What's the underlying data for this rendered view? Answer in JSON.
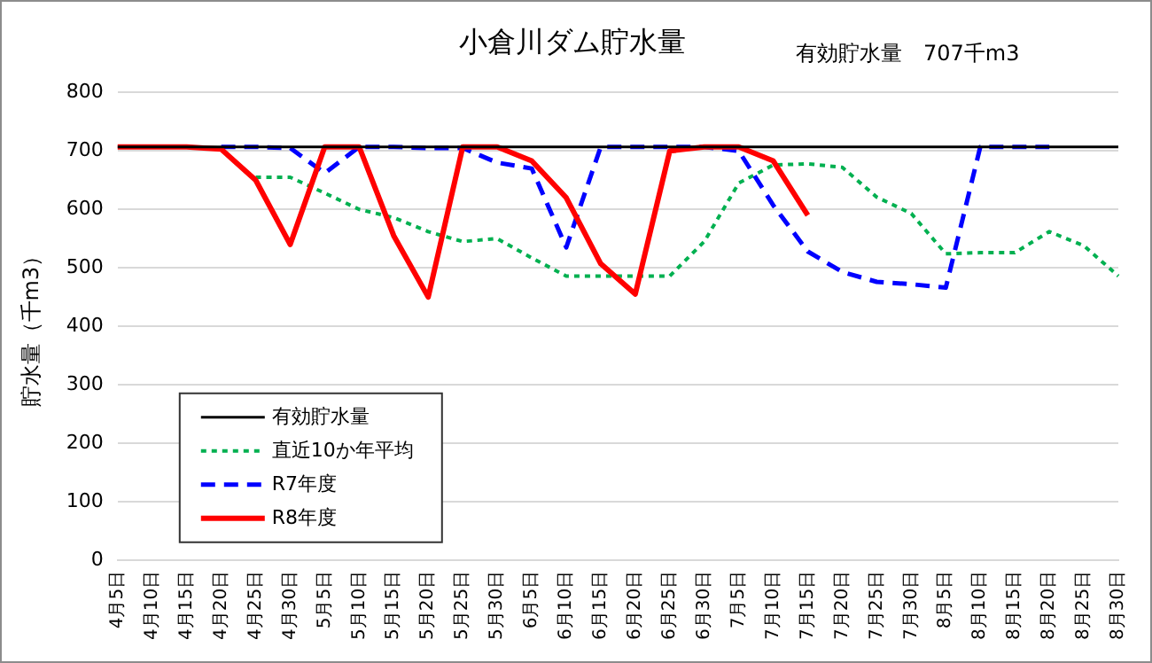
{
  "chart_data": {
    "type": "line",
    "title": "小倉川ダム貯水量",
    "ylabel": "貯水量（千m3）",
    "annotations": [
      "有効貯水量　707千m3"
    ],
    "categories": [
      "4月5日",
      "4月10日",
      "4月15日",
      "4月20日",
      "4月25日",
      "4月30日",
      "5月5日",
      "5月10日",
      "5月15日",
      "5月20日",
      "5月25日",
      "5月30日",
      "6月5日",
      "6月10日",
      "6月15日",
      "6月20日",
      "6月25日",
      "6月30日",
      "7月5日",
      "7月10日",
      "7月15日",
      "7月20日",
      "7月25日",
      "7月30日",
      "8月5日",
      "8月10日",
      "8月15日",
      "8月20日",
      "8月25日",
      "8月30日"
    ],
    "series": [
      {
        "name": "有効貯水量",
        "color": "#000000",
        "line_style": "solid",
        "values": [
          707,
          707,
          707,
          707,
          707,
          707,
          707,
          707,
          707,
          707,
          707,
          707,
          707,
          707,
          707,
          707,
          707,
          707,
          707,
          707,
          707,
          707,
          707,
          707,
          707,
          707,
          707,
          707,
          707,
          707
        ]
      },
      {
        "name": "直近10か年平均",
        "color": "#00b050",
        "line_style": "dotted",
        "values": [
          null,
          null,
          null,
          null,
          655,
          655,
          628,
          600,
          586,
          562,
          545,
          550,
          517,
          486,
          486,
          486,
          486,
          545,
          645,
          676,
          678,
          672,
          621,
          593,
          524,
          526,
          526,
          562,
          538,
          486
        ]
      },
      {
        "name": "R7年度",
        "color": "#0000ff",
        "line_style": "dashed",
        "values": [
          null,
          null,
          null,
          707,
          707,
          705,
          662,
          707,
          707,
          705,
          705,
          680,
          670,
          535,
          707,
          707,
          707,
          707,
          700,
          607,
          528,
          493,
          476,
          472,
          466,
          707,
          707,
          707,
          null,
          null
        ]
      },
      {
        "name": "R8年度",
        "color": "#ff0000",
        "line_style": "solid",
        "values": [
          707,
          707,
          707,
          703,
          650,
          540,
          707,
          707,
          555,
          450,
          707,
          707,
          683,
          620,
          507,
          455,
          700,
          707,
          707,
          683,
          590,
          null,
          null,
          null,
          null,
          null,
          null,
          null,
          null,
          null
        ]
      }
    ],
    "ylim": [
      0,
      800
    ],
    "yticks": [
      0,
      100,
      200,
      300,
      400,
      500,
      600,
      700,
      800
    ],
    "grid": "y",
    "legend": "bottom left",
    "marker": "none"
  }
}
